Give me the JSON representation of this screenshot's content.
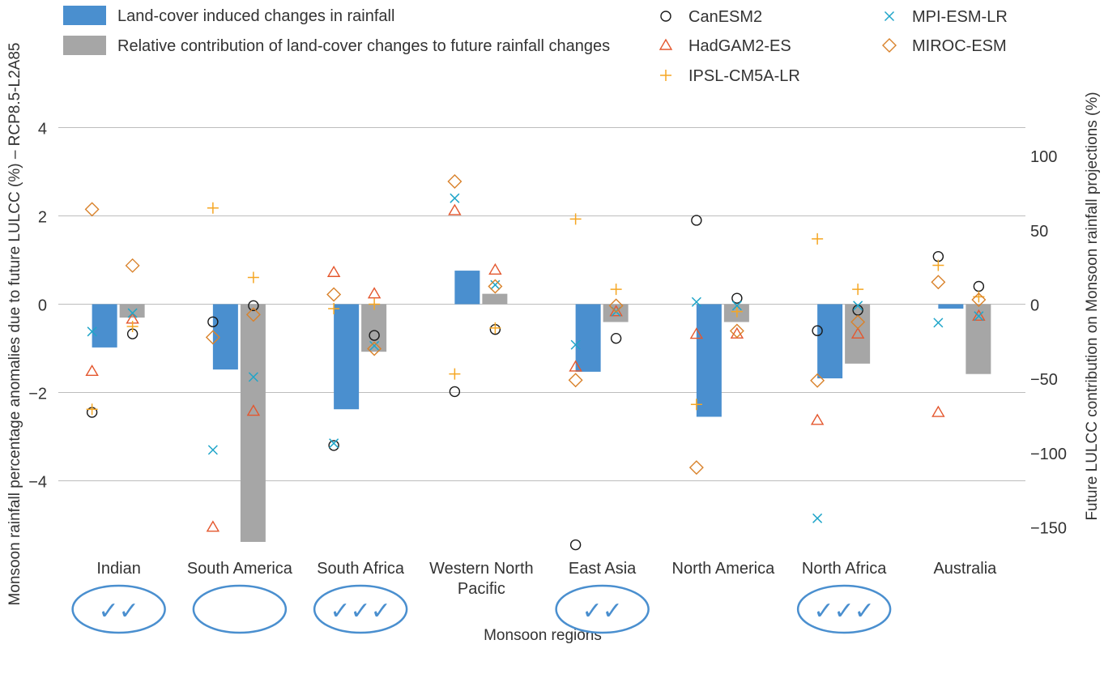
{
  "chart_data": {
    "type": "bar",
    "xlabel": "Monsoon regions",
    "ylabel": "Monsoon rainfall percentage anomalies due to future LULCC (%) – RCP8.5-L2A85",
    "ylabel_right": "Future LULCC contribution on Monsoon rainfall projections (%)",
    "ylim": [
      -5.4,
      4
    ],
    "ylim_right": [
      -160,
      120
    ],
    "yticks": [
      "−4",
      "−2",
      "0",
      "2",
      "4"
    ],
    "yticks_right": [
      "−150",
      "−100",
      "−50",
      "0",
      "50",
      "100"
    ],
    "ytick_values": [
      -4,
      -2,
      0,
      2,
      4
    ],
    "ytick_values_right": [
      -150,
      -100,
      -50,
      0,
      50,
      100
    ],
    "grid": true,
    "legend_position": "top",
    "categories": [
      "Indian",
      "South America",
      "South Africa",
      "Western North Pacific",
      "East Asia",
      "North America",
      "North Africa",
      "Australia"
    ],
    "category_labels": [
      [
        "Indian"
      ],
      [
        "South America"
      ],
      [
        "South Africa"
      ],
      [
        "Western North",
        "Pacific"
      ],
      [
        "East Asia"
      ],
      [
        "North America"
      ],
      [
        "North Africa"
      ],
      [
        "Australia"
      ]
    ],
    "checkmarks": [
      "✓✓",
      "",
      "✓✓✓",
      "",
      "✓✓",
      "",
      "✓✓✓",
      ""
    ],
    "bars": [
      {
        "name": "Land-cover induced changes in rainfall",
        "axis": "left",
        "color": "#4a8fcf",
        "values": [
          -0.98,
          -1.48,
          -2.38,
          0.76,
          -1.53,
          -2.55,
          -1.68,
          -0.1
        ]
      },
      {
        "name": "Relative contribution of land-cover changes to future rainfall changes",
        "axis": "right",
        "color": "#a6a6a6",
        "values": [
          -9,
          -160,
          -32,
          7,
          -12,
          -12,
          -40,
          -47
        ]
      }
    ],
    "models": [
      {
        "name": "CanESM2",
        "marker": "circle",
        "color": "#1a1a1a",
        "left_values": [
          -2.45,
          -0.4,
          -3.2,
          -1.98,
          -5.45,
          1.9,
          -0.6,
          1.08
        ],
        "right_values": [
          -20,
          -1,
          -21,
          -17,
          -23,
          4,
          -4,
          12
        ]
      },
      {
        "name": "HadGAM2-ES",
        "marker": "triangle",
        "color": "#e4572e",
        "left_values": [
          -1.52,
          -5.05,
          0.72,
          2.12,
          -1.42,
          -0.68,
          -2.63,
          -2.45
        ],
        "right_values": [
          -10,
          -72,
          7,
          23,
          -5,
          -20,
          -20,
          -8
        ]
      },
      {
        "name": "IPSL-CM5A-LR",
        "marker": "plus",
        "color": "#f5a623",
        "left_values": [
          -2.38,
          2.18,
          -0.1,
          -1.58,
          1.93,
          -2.27,
          1.48,
          0.88
        ],
        "right_values": [
          -15,
          18,
          0,
          -16,
          10,
          -5,
          10,
          5
        ]
      },
      {
        "name": "MPI-ESM-LR",
        "marker": "cross",
        "color": "#1fa5c9",
        "left_values": [
          -0.62,
          -3.3,
          -3.15,
          2.4,
          -0.92,
          0.05,
          -4.85,
          -0.42
        ],
        "right_values": [
          -6,
          -49,
          -28,
          13,
          -5,
          -1,
          -1,
          -8
        ]
      },
      {
        "name": "MIROC-ESM",
        "marker": "diamond",
        "color": "#d9822b",
        "left_values": [
          2.15,
          -0.75,
          0.22,
          2.78,
          -1.72,
          -3.7,
          -1.73,
          0.5
        ],
        "right_values": [
          26,
          -7,
          -30,
          12,
          -1,
          -18,
          -12,
          3
        ]
      }
    ]
  }
}
